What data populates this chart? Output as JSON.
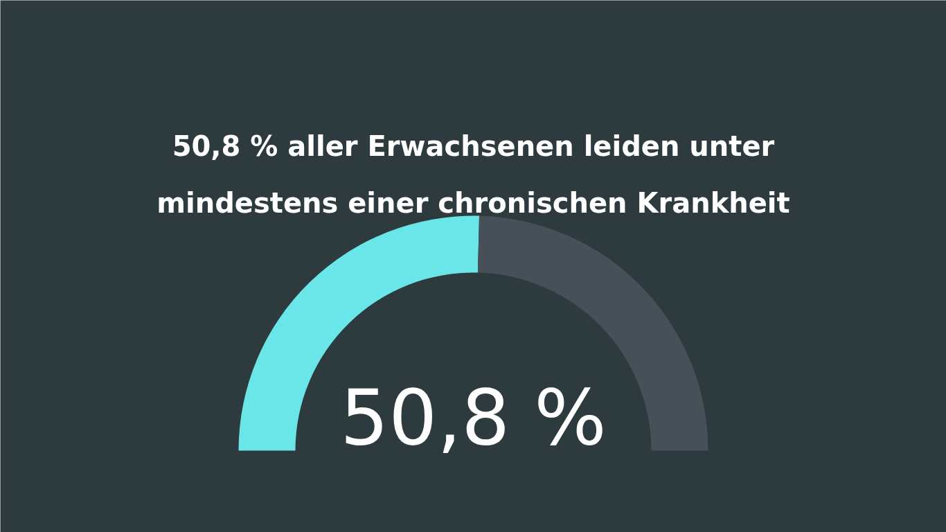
{
  "chart_data": {
    "type": "donut",
    "title": "50,8 % aller Erwachsenen leiden unter mindestens einer chronischen Krankheit",
    "categories": [
      null,
      null
    ],
    "values": [
      50.8,
      49.2
    ],
    "colors": [
      "#6ae5e8",
      "#474f58"
    ],
    "value_labels": [
      "50,8 %",
      null
    ]
  }
}
